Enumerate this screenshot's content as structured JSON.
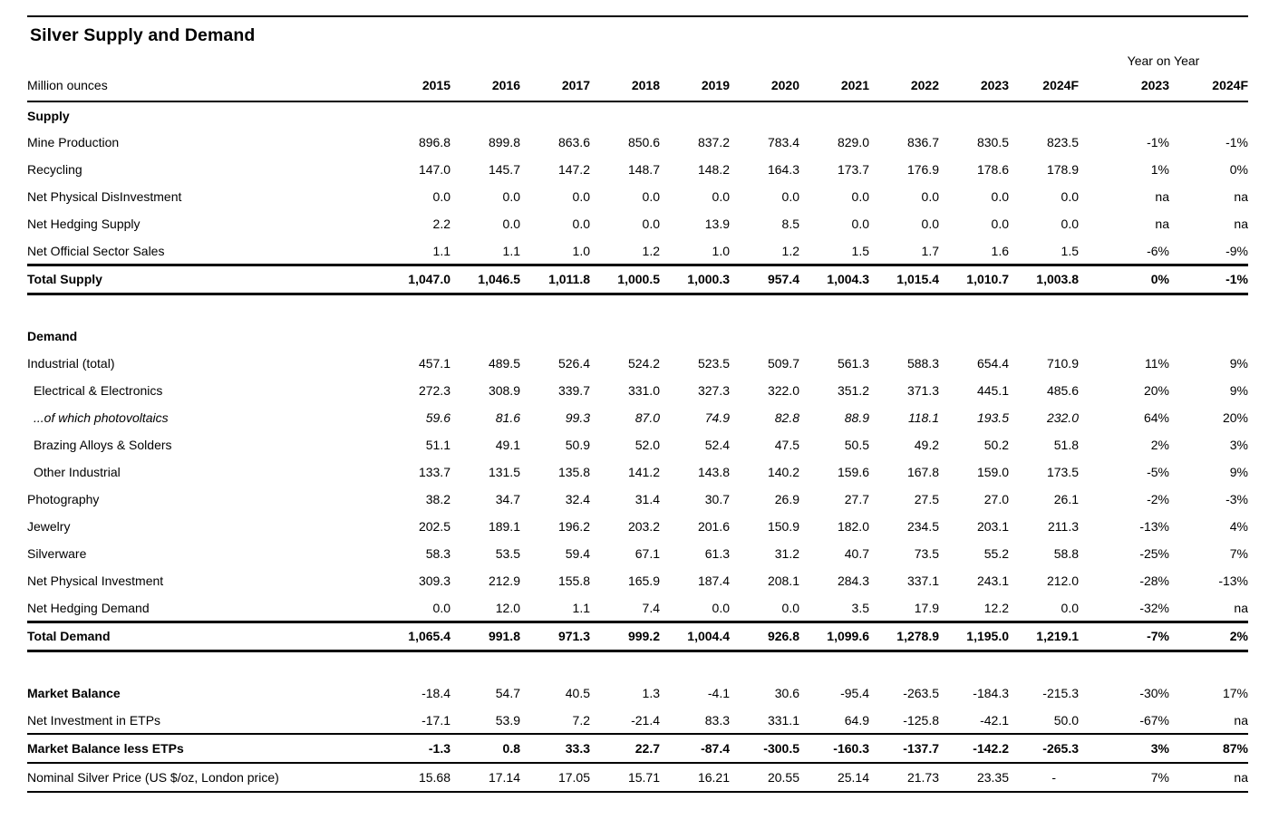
{
  "chart_data": {
    "type": "table",
    "title": "Silver Supply and Demand",
    "unit_label": "Million ounces",
    "yoy_group_label": "Year on Year",
    "year_columns": [
      "2015",
      "2016",
      "2017",
      "2018",
      "2019",
      "2020",
      "2021",
      "2022",
      "2023",
      "2024F"
    ],
    "yoy_columns": [
      "2023",
      "2024F"
    ],
    "rows": [
      {
        "label": "Supply",
        "style": "section",
        "values": []
      },
      {
        "label": "Mine Production",
        "style": "",
        "values": [
          "896.8",
          "899.8",
          "863.6",
          "850.6",
          "837.2",
          "783.4",
          "829.0",
          "836.7",
          "830.5",
          "823.5",
          "-1%",
          "-1%"
        ]
      },
      {
        "label": "Recycling",
        "style": "",
        "values": [
          "147.0",
          "145.7",
          "147.2",
          "148.7",
          "148.2",
          "164.3",
          "173.7",
          "176.9",
          "178.6",
          "178.9",
          "1%",
          "0%"
        ]
      },
      {
        "label": "Net Physical DisInvestment",
        "style": "",
        "values": [
          "0.0",
          "0.0",
          "0.0",
          "0.0",
          "0.0",
          "0.0",
          "0.0",
          "0.0",
          "0.0",
          "0.0",
          "na",
          "na"
        ]
      },
      {
        "label": "Net Hedging Supply",
        "style": "",
        "values": [
          "2.2",
          "0.0",
          "0.0",
          "0.0",
          "13.9",
          "8.5",
          "0.0",
          "0.0",
          "0.0",
          "0.0",
          "na",
          "na"
        ]
      },
      {
        "label": "Net Official Sector Sales",
        "style": "",
        "rule_below": "thick",
        "values": [
          "1.1",
          "1.1",
          "1.0",
          "1.2",
          "1.0",
          "1.2",
          "1.5",
          "1.7",
          "1.6",
          "1.5",
          "-6%",
          "-9%"
        ]
      },
      {
        "label": "Total Supply",
        "style": "total",
        "rule_below": "thick",
        "values": [
          "1,047.0",
          "1,046.5",
          "1,011.8",
          "1,000.5",
          "1,000.3",
          "957.4",
          "1,004.3",
          "1,015.4",
          "1,010.7",
          "1,003.8",
          "0%",
          "-1%"
        ]
      },
      {
        "label": "",
        "style": "spacer",
        "values": []
      },
      {
        "label": "Demand",
        "style": "section",
        "values": []
      },
      {
        "label": "Industrial (total)",
        "style": "",
        "values": [
          "457.1",
          "489.5",
          "526.4",
          "524.2",
          "523.5",
          "509.7",
          "561.3",
          "588.3",
          "654.4",
          "710.9",
          "11%",
          "9%"
        ]
      },
      {
        "label": "Electrical & Electronics",
        "style": "indent",
        "values": [
          "272.3",
          "308.9",
          "339.7",
          "331.0",
          "327.3",
          "322.0",
          "351.2",
          "371.3",
          "445.1",
          "485.6",
          "20%",
          "9%"
        ]
      },
      {
        "label": "...of which photovoltaics",
        "style": "indent italic",
        "values": [
          "59.6",
          "81.6",
          "99.3",
          "87.0",
          "74.9",
          "82.8",
          "88.9",
          "118.1",
          "193.5",
          "232.0",
          "64%",
          "20%"
        ]
      },
      {
        "label": "Brazing Alloys & Solders",
        "style": "indent",
        "values": [
          "51.1",
          "49.1",
          "50.9",
          "52.0",
          "52.4",
          "47.5",
          "50.5",
          "49.2",
          "50.2",
          "51.8",
          "2%",
          "3%"
        ]
      },
      {
        "label": "Other Industrial",
        "style": "indent",
        "values": [
          "133.7",
          "131.5",
          "135.8",
          "141.2",
          "143.8",
          "140.2",
          "159.6",
          "167.8",
          "159.0",
          "173.5",
          "-5%",
          "9%"
        ]
      },
      {
        "label": "Photography",
        "style": "",
        "values": [
          "38.2",
          "34.7",
          "32.4",
          "31.4",
          "30.7",
          "26.9",
          "27.7",
          "27.5",
          "27.0",
          "26.1",
          "-2%",
          "-3%"
        ]
      },
      {
        "label": "Jewelry",
        "style": "",
        "values": [
          "202.5",
          "189.1",
          "196.2",
          "203.2",
          "201.6",
          "150.9",
          "182.0",
          "234.5",
          "203.1",
          "211.3",
          "-13%",
          "4%"
        ]
      },
      {
        "label": "Silverware",
        "style": "",
        "values": [
          "58.3",
          "53.5",
          "59.4",
          "67.1",
          "61.3",
          "31.2",
          "40.7",
          "73.5",
          "55.2",
          "58.8",
          "-25%",
          "7%"
        ]
      },
      {
        "label": "Net Physical Investment",
        "style": "",
        "values": [
          "309.3",
          "212.9",
          "155.8",
          "165.9",
          "187.4",
          "208.1",
          "284.3",
          "337.1",
          "243.1",
          "212.0",
          "-28%",
          "-13%"
        ]
      },
      {
        "label": "Net Hedging Demand",
        "style": "",
        "rule_below": "thick",
        "values": [
          "0.0",
          "12.0",
          "1.1",
          "7.4",
          "0.0",
          "0.0",
          "3.5",
          "17.9",
          "12.2",
          "0.0",
          "-32%",
          "na"
        ]
      },
      {
        "label": "Total Demand",
        "style": "total",
        "rule_below": "thick",
        "values": [
          "1,065.4",
          "991.8",
          "971.3",
          "999.2",
          "1,004.4",
          "926.8",
          "1,099.6",
          "1,278.9",
          "1,195.0",
          "1,219.1",
          "-7%",
          "2%"
        ]
      },
      {
        "label": "",
        "style": "spacer",
        "values": []
      },
      {
        "label": "Market Balance",
        "style": "bold-label",
        "values": [
          "-18.4",
          "54.7",
          "40.5",
          "1.3",
          "-4.1",
          "30.6",
          "-95.4",
          "-263.5",
          "-184.3",
          "-215.3",
          "-30%",
          "17%"
        ]
      },
      {
        "label": "Net Investment in ETPs",
        "style": "",
        "rule_below": "med",
        "values": [
          "-17.1",
          "53.9",
          "7.2",
          "-21.4",
          "83.3",
          "331.1",
          "64.9",
          "-125.8",
          "-42.1",
          "50.0",
          "-67%",
          "na"
        ]
      },
      {
        "label": "Market Balance less ETPs",
        "style": "total",
        "rule_below": "med",
        "values": [
          "-1.3",
          "0.8",
          "33.3",
          "22.7",
          "-87.4",
          "-300.5",
          "-160.3",
          "-137.7",
          "-142.2",
          "-265.3",
          "3%",
          "87%"
        ]
      },
      {
        "label": "Nominal Silver Price (US $/oz, London price)",
        "style": "price",
        "rule_below": "med",
        "values": [
          "15.68",
          "17.14",
          "17.05",
          "15.71",
          "16.21",
          "20.55",
          "25.14",
          "21.73",
          "23.35",
          "-",
          "7%",
          "na"
        ]
      }
    ]
  }
}
